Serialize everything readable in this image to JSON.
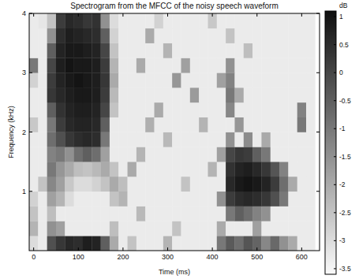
{
  "chart_data": {
    "type": "heatmap",
    "title": "Spectrogram from the MFCC of the noisy speech waveform",
    "x_label": "Time (ms)",
    "y_label": "Frequency (kHz)",
    "xlim": [
      -10,
      640
    ],
    "ylim": [
      0,
      4
    ],
    "xticks": [
      0,
      100,
      200,
      300,
      400,
      500,
      600
    ],
    "yticks": [
      1,
      2,
      3,
      4
    ],
    "x": [
      0,
      20,
      40,
      60,
      80,
      100,
      120,
      140,
      160,
      180,
      200,
      220,
      240,
      260,
      280,
      300,
      320,
      340,
      360,
      380,
      400,
      420,
      440,
      460,
      480,
      500,
      520,
      540,
      560,
      580,
      600,
      620
    ],
    "y": [
      0.125,
      0.375,
      0.625,
      0.875,
      1.125,
      1.375,
      1.625,
      1.875,
      2.125,
      2.375,
      2.625,
      2.875,
      3.125,
      3.375,
      3.625,
      3.875
    ],
    "cells": [
      [
        -3.0,
        -3.3,
        -0.2,
        0.3,
        0.6,
        0.5,
        0.8,
        0.7,
        -0.5,
        -2.0,
        -3.3,
        -2.5,
        -3.3,
        -3.3,
        -3.3,
        -2.2,
        -3.3,
        -3.3,
        -3.3,
        -3.3,
        -3.3,
        -1.0,
        -0.4,
        -0.8,
        -0.3,
        -0.6,
        -1.3,
        -0.7,
        -1.5,
        -2.0,
        -3.3,
        -3.3
      ],
      [
        -2.2,
        -3.3,
        -1.5,
        -1.8,
        -3.3,
        -3.3,
        -3.3,
        -3.3,
        -3.3,
        -2.4,
        -3.3,
        -3.3,
        -3.3,
        -3.3,
        -3.3,
        -3.3,
        -2.5,
        -3.3,
        -3.3,
        -3.3,
        -3.3,
        -2.0,
        -3.3,
        -3.3,
        -3.3,
        -1.8,
        -3.3,
        -3.3,
        -3.3,
        -3.3,
        -3.3,
        -3.3
      ],
      [
        -2.5,
        -3.3,
        -2.4,
        -3.3,
        -3.3,
        -3.3,
        -3.3,
        -3.3,
        -3.3,
        -3.3,
        -3.3,
        -3.3,
        -2.3,
        -3.3,
        -3.3,
        -3.3,
        -3.3,
        -3.3,
        -3.3,
        -3.3,
        -3.3,
        -3.3,
        -1.0,
        -0.5,
        -0.8,
        -1.2,
        -1.5,
        -3.3,
        -3.3,
        -3.3,
        -3.3,
        -3.3
      ],
      [
        -2.8,
        -3.3,
        -1.8,
        -2.2,
        -3.0,
        -3.3,
        -3.3,
        -3.3,
        -3.3,
        -2.5,
        -2.2,
        -3.3,
        -3.3,
        -3.3,
        -3.3,
        -3.3,
        -3.3,
        -3.3,
        -3.3,
        -3.3,
        -3.3,
        -1.5,
        0.2,
        0.5,
        0.6,
        0.5,
        0.3,
        -0.2,
        -1.0,
        -3.3,
        -3.3,
        -3.3
      ],
      [
        -3.3,
        -2.5,
        -1.3,
        -1.8,
        -2.6,
        -3.0,
        -3.0,
        -2.8,
        -2.5,
        -2.0,
        -2.4,
        -3.3,
        -3.3,
        -3.3,
        -3.3,
        -3.3,
        -3.3,
        -2.5,
        -3.3,
        -3.3,
        -3.3,
        -3.3,
        0.6,
        0.9,
        1.0,
        0.9,
        0.7,
        0.2,
        -0.8,
        -2.0,
        -3.3,
        -3.3
      ],
      [
        -3.3,
        -3.3,
        -1.0,
        -1.6,
        -2.0,
        -2.4,
        -2.5,
        -2.3,
        -2.0,
        -2.5,
        -3.3,
        -2.0,
        -3.3,
        -3.3,
        -3.3,
        -3.3,
        -3.3,
        -3.3,
        -3.3,
        -3.3,
        -2.2,
        -3.3,
        0.4,
        0.7,
        0.8,
        0.6,
        0.3,
        -0.3,
        -1.2,
        -3.3,
        -3.3,
        -3.3
      ],
      [
        -3.3,
        -3.3,
        -1.2,
        -1.0,
        -1.5,
        -0.8,
        -0.5,
        -0.8,
        -1.8,
        -3.3,
        -3.3,
        -3.3,
        -2.2,
        -3.3,
        -3.3,
        -3.3,
        -3.3,
        -3.3,
        -3.3,
        -3.3,
        -3.3,
        -1.8,
        0.0,
        0.3,
        0.2,
        -0.5,
        -1.0,
        -3.3,
        -3.3,
        -3.3,
        -3.3,
        -3.3
      ],
      [
        -3.3,
        -3.3,
        -0.8,
        -0.2,
        0.3,
        0.5,
        0.6,
        0.5,
        -1.0,
        -3.3,
        -3.3,
        -3.3,
        -3.3,
        -3.3,
        -3.3,
        -2.3,
        -3.3,
        -3.3,
        -3.3,
        -3.3,
        -3.3,
        -3.3,
        -1.5,
        -3.3,
        -1.4,
        -3.3,
        -2.0,
        -3.3,
        -3.3,
        -3.3,
        -3.3,
        -3.3
      ],
      [
        -2.6,
        -3.3,
        -1.0,
        0.2,
        0.6,
        0.7,
        0.7,
        0.6,
        -0.5,
        -3.3,
        -3.3,
        -3.3,
        -3.3,
        -2.1,
        -3.3,
        -3.3,
        -3.3,
        -3.3,
        -3.3,
        -2.2,
        -3.3,
        -3.3,
        -3.3,
        -1.6,
        -3.3,
        -3.3,
        -3.3,
        -3.3,
        -3.3,
        -3.3,
        -1.0,
        -3.3
      ],
      [
        -3.3,
        -3.3,
        -0.5,
        0.4,
        0.7,
        0.8,
        0.8,
        0.7,
        0.0,
        -2.5,
        -3.3,
        -3.3,
        -3.3,
        -3.3,
        -2.0,
        -3.3,
        -3.3,
        -3.3,
        -3.3,
        -3.3,
        -3.3,
        -3.3,
        -1.3,
        -3.3,
        -3.3,
        -3.3,
        -3.3,
        -3.3,
        -3.3,
        -3.3,
        -1.2,
        -3.3
      ],
      [
        -3.3,
        -3.3,
        0.3,
        0.6,
        0.8,
        0.9,
        0.9,
        0.8,
        0.2,
        -2.3,
        -3.3,
        -3.3,
        -3.3,
        -3.3,
        -3.3,
        -3.3,
        -3.3,
        -3.3,
        -1.7,
        -3.3,
        -3.3,
        -3.3,
        -1.0,
        -2.0,
        -3.3,
        -3.3,
        -3.3,
        -3.3,
        -3.3,
        -3.3,
        -3.3,
        -3.3
      ],
      [
        -2.8,
        -3.3,
        0.2,
        0.7,
        0.9,
        1.0,
        0.9,
        0.8,
        0.3,
        -2.0,
        -3.3,
        -3.3,
        -3.3,
        -3.3,
        -3.3,
        -3.3,
        -1.6,
        -3.3,
        -3.3,
        -3.3,
        -3.3,
        -1.8,
        -1.2,
        -3.3,
        -3.3,
        -3.3,
        -3.3,
        -3.3,
        -3.3,
        -3.3,
        -3.3,
        -3.3
      ],
      [
        -1.0,
        -3.3,
        0.0,
        0.8,
        1.0,
        0.9,
        0.9,
        0.8,
        0.2,
        -2.2,
        -3.3,
        -3.3,
        -2.0,
        -3.3,
        -3.3,
        -3.3,
        -3.3,
        -1.8,
        -3.3,
        -3.3,
        -3.3,
        -3.3,
        -1.5,
        -3.3,
        -3.3,
        -3.3,
        -3.3,
        -3.3,
        -3.3,
        -3.3,
        -3.3,
        -3.3
      ],
      [
        -3.3,
        -3.3,
        -0.5,
        0.7,
        0.9,
        0.9,
        0.8,
        0.7,
        0.0,
        -2.5,
        -3.3,
        -3.3,
        -3.3,
        -3.3,
        -3.3,
        -2.2,
        -3.3,
        -3.3,
        -3.3,
        -3.3,
        -3.3,
        -3.3,
        -3.3,
        -3.3,
        -2.4,
        -3.3,
        -3.3,
        -3.3,
        -3.3,
        -3.3,
        -3.3,
        -3.3
      ],
      [
        -3.3,
        -3.3,
        -1.5,
        0.5,
        0.8,
        0.7,
        0.6,
        0.5,
        -0.5,
        -2.8,
        -3.3,
        -3.3,
        -3.3,
        -2.0,
        -3.3,
        -3.3,
        -3.3,
        -3.3,
        -3.3,
        -3.3,
        -3.3,
        -3.3,
        -2.5,
        -3.3,
        -3.3,
        -3.3,
        -3.3,
        -3.3,
        -3.3,
        -3.3,
        -3.3,
        -3.3
      ],
      [
        -3.3,
        -3.2,
        -2.5,
        0.2,
        0.6,
        0.5,
        0.3,
        0.4,
        -1.5,
        -3.0,
        -3.3,
        -3.3,
        -3.3,
        -3.3,
        -2.8,
        -3.3,
        -3.3,
        -3.3,
        -3.3,
        -3.3,
        -2.6,
        -3.3,
        -3.3,
        -3.3,
        -3.3,
        -3.3,
        -3.3,
        -3.3,
        -3.3,
        -3.3,
        -3.3,
        -3.3
      ]
    ],
    "colorbar": {
      "label": "dB",
      "range": [
        -3.6,
        1.1
      ],
      "ticks": [
        1,
        0.5,
        0,
        -0.5,
        -1,
        -1.5,
        -2,
        -2.5,
        -3,
        -3.5
      ]
    }
  }
}
